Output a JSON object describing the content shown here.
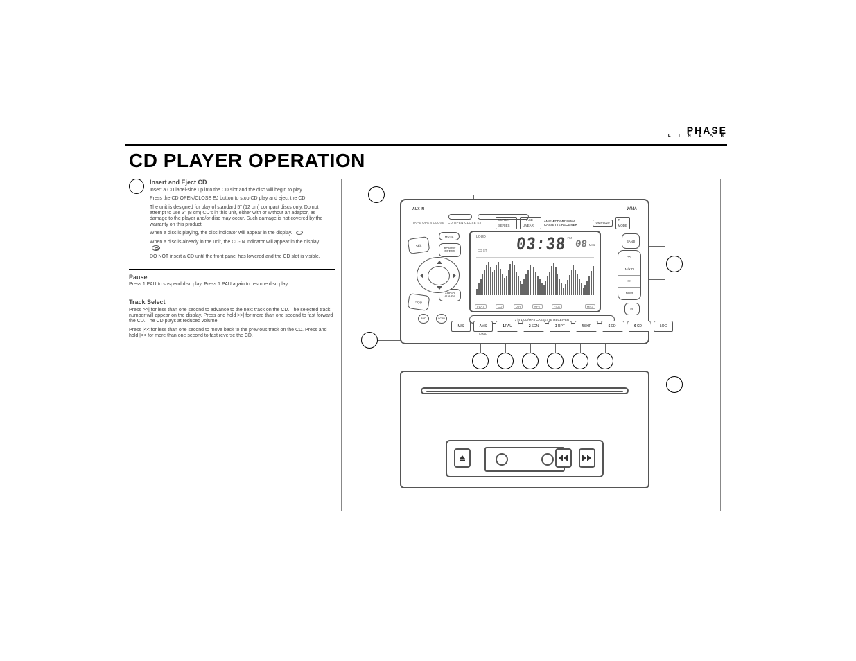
{
  "brand": {
    "name": "PHASE",
    "sub": "L I N E A R"
  },
  "title": "CD PLAYER OPERATION",
  "left_column": {
    "sec1": {
      "heading": "Insert and Eject CD",
      "p1": "Insert a CD label-side up into the CD slot and the disc will begin to play.",
      "p2": "Press the CD OPEN/CLOSE EJ button to stop CD play and eject the CD.",
      "p3": "The unit is designed for play of standard 5\" (12 cm) compact discs only. Do not attempt to use 3\" (8 cm) CD's in this unit, either with or without an adaptor, as damage to the player and/or disc may occur. Such damage is not covered by the warranty on this product.",
      "p4": "When a disc is playing, the disc indicator will appear in the display.",
      "p5": "When a disc is already in the unit, the CD-IN indicator will appear in the display.",
      "p6": "DO NOT insert a CD until the front panel has lowered and the CD slot is visible."
    },
    "sec2": {
      "heading": "Pause",
      "p1": "Press 1 PAU to suspend disc play. Press 1 PAU again to resume disc play."
    },
    "sec3": {
      "heading": "Track Select",
      "p1": "Press >>| for less than one second to advance to the next track on the CD. The selected track number will appear on the display. Press and hold >>| for more than one second to fast forward the CD. The CD plays at reduced volume.",
      "p2": "Press |<< for less than one second to move back to the previous track on the CD. Press and hold |<< for more than one second to fast reverse the CD."
    }
  },
  "unit": {
    "aux": "AUX IN",
    "wma": "WMA",
    "tape_open": "TAPE OPEN CLOSE",
    "cd_open": "CD OPEN CLOSE EJ",
    "banner": {
      "title": "AM/FM/CD/MP3/WMA CASSETTE RECEIVER",
      "series": "ULTRA SERIES",
      "brand_small": "PHASE LINEAR",
      "model": "UMP9020",
      "tmode": "T MODE"
    },
    "buttons": {
      "sel": "SEL",
      "squ": "SQU",
      "mute": "MUTE",
      "power": "POWER\nPRESS",
      "audio_alarm": "AUDIO\nALARM",
      "bnd": "BND",
      "scan": "SCAN",
      "band": "BAND",
      "audio": "AUDIO"
    },
    "rgroup": [
      "<<",
      "M/X/D",
      ">>",
      "DISP"
    ],
    "fl": "FL",
    "receiver_strip": "3 in 1 CD/MP3 CASSETTE RECEIVER",
    "bottom": {
      "left": [
        "M/S",
        "AMS"
      ],
      "idaud": "ID AUD",
      "presets": [
        "1 PAU",
        "2 SCN",
        "3 RPT",
        "4 SHF",
        "5 CD-",
        "6 CD+"
      ],
      "loc": "LOC"
    }
  },
  "lcd": {
    "loud": "LOUD",
    "time": "03:38",
    "ch": "08",
    "fm": "FM",
    "mhz": "MHz",
    "cd_icons": "CD  ST",
    "st_text": "ST",
    "foot": [
      "FLAT",
      "CD",
      "DIR",
      "RPT",
      "FILE",
      "",
      "MP3"
    ],
    "spectrum_heights_pct": [
      18,
      34,
      46,
      58,
      70,
      82,
      92,
      78,
      64,
      70,
      84,
      92,
      74,
      60,
      48,
      54,
      72,
      86,
      94,
      82,
      66,
      52,
      40,
      30,
      44,
      58,
      72,
      84,
      92,
      78,
      66,
      52,
      44,
      34,
      26,
      38,
      52,
      66,
      80,
      90,
      76,
      60,
      46,
      34,
      22,
      30,
      42,
      56,
      70,
      82,
      72,
      58,
      44,
      32,
      20,
      28,
      40,
      54,
      68,
      80
    ]
  },
  "colors": {
    "line": "#555555",
    "text": "#333333",
    "lcd_bar": "#666666"
  }
}
